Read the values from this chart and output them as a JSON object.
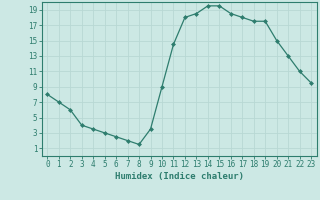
{
  "x": [
    0,
    1,
    2,
    3,
    4,
    5,
    6,
    7,
    8,
    9,
    10,
    11,
    12,
    13,
    14,
    15,
    16,
    17,
    18,
    19,
    20,
    21,
    22,
    23
  ],
  "y": [
    8,
    7,
    6,
    4,
    3.5,
    3,
    2.5,
    2,
    1.5,
    3.5,
    9,
    14.5,
    18,
    18.5,
    19.5,
    19.5,
    18.5,
    18,
    17.5,
    17.5,
    15,
    13,
    11,
    9.5
  ],
  "line_color": "#2e7d6e",
  "bg_color": "#cce8e4",
  "grid_color": "#b8d8d4",
  "xlabel": "Humidex (Indice chaleur)",
  "xlim": [
    -0.5,
    23.5
  ],
  "ylim": [
    0,
    20
  ],
  "xticks": [
    0,
    1,
    2,
    3,
    4,
    5,
    6,
    7,
    8,
    9,
    10,
    11,
    12,
    13,
    14,
    15,
    16,
    17,
    18,
    19,
    20,
    21,
    22,
    23
  ],
  "yticks": [
    1,
    3,
    5,
    7,
    9,
    11,
    13,
    15,
    17,
    19
  ],
  "tick_color": "#2e7d6e",
  "label_fontsize": 6.5,
  "tick_fontsize": 5.5
}
